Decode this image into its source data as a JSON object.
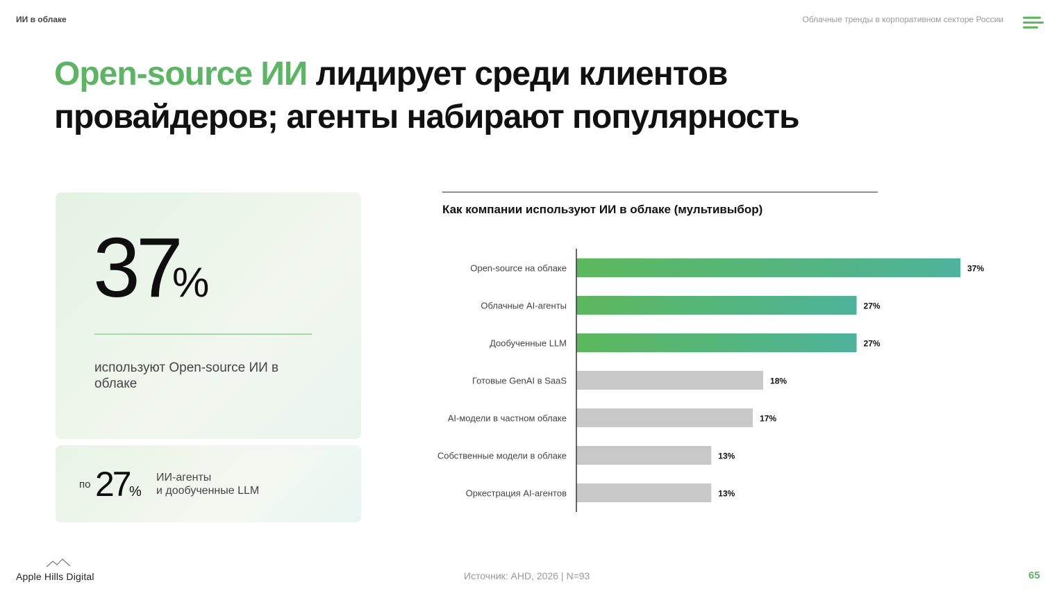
{
  "header": {
    "section": "ИИ в облаке",
    "report": "Облачные тренды в корпоративном секторе России",
    "menu_icon": "hamburger-menu-icon"
  },
  "title": {
    "accent": "Open-source ИИ",
    "line1_rest": " лидирует среди клиентов",
    "line2": "провайдеров; агенты набирают популярность"
  },
  "kpi_main": {
    "value": "37",
    "unit": "%",
    "description": "используют Open-source ИИ в облаке"
  },
  "kpi_secondary": {
    "prefix": "по",
    "value": "27",
    "unit": "%",
    "line1": "ИИ-агенты",
    "line2": "и дообученные LLM"
  },
  "chart_data": {
    "type": "bar",
    "orientation": "horizontal",
    "title": "Как компании используют ИИ в облаке (мультивыбор)",
    "categories": [
      "Open-source на облаке",
      "Облачные AI-агенты",
      "Дообученные LLM",
      "Готовые GenAI в SaaS",
      "AI-модели в частном облаке",
      "Собственные модели в облаке",
      "Оркестрация AI-агентов"
    ],
    "values": [
      37,
      27,
      27,
      18,
      17,
      13,
      13
    ],
    "value_labels": [
      "37%",
      "27%",
      "27%",
      "18%",
      "17%",
      "13%",
      "13%"
    ],
    "highlighted": [
      true,
      true,
      true,
      false,
      false,
      false,
      false
    ],
    "colors": {
      "highlight_start": "#5cb85c",
      "highlight_end": "#4db39a",
      "other": "#c8c8c8"
    },
    "xlim": [
      0,
      37
    ],
    "grid": false,
    "legend": "none"
  },
  "footer": {
    "brand": "Apple Hills Digital",
    "source": "Источник: AHD, 2026 | N=93",
    "page": "65"
  }
}
